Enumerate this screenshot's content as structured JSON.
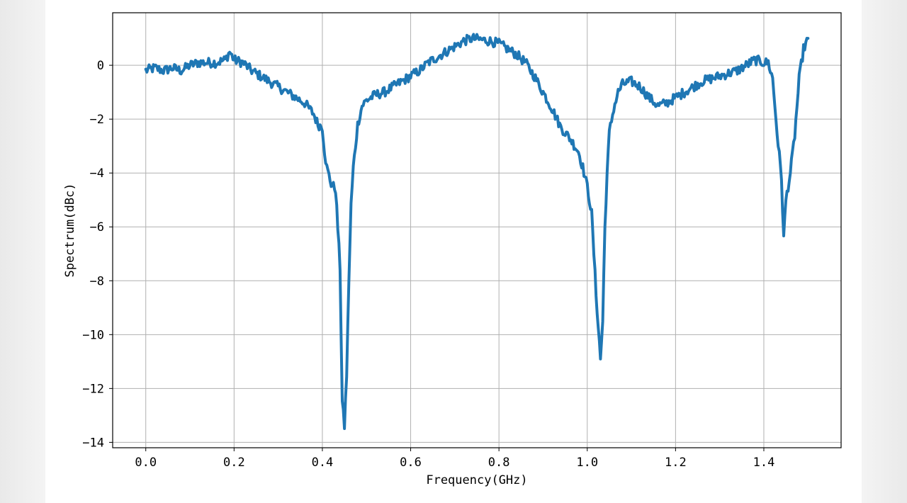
{
  "chart_data": {
    "type": "line",
    "title": "",
    "xlabel": "Frequency(GHz)",
    "ylabel": "Spectrum(dBc)",
    "xlim": [
      -0.075,
      1.575
    ],
    "ylim": [
      -14.2,
      1.95
    ],
    "grid": true,
    "x_ticks": [
      0.0,
      0.2,
      0.4,
      0.6,
      0.8,
      1.0,
      1.2,
      1.4
    ],
    "x_tick_labels": [
      "0.0",
      "0.2",
      "0.4",
      "0.6",
      "0.8",
      "1.0",
      "1.2",
      "1.4"
    ],
    "y_ticks": [
      0,
      -2,
      -4,
      -6,
      -8,
      -10,
      -12,
      -14
    ],
    "y_tick_labels": [
      "0",
      "−2",
      "−4",
      "−6",
      "−8",
      "−10",
      "−12",
      "−14"
    ],
    "series": [
      {
        "color": "#1f77b4",
        "x": [
          0.0,
          0.02,
          0.04,
          0.06,
          0.08,
          0.1,
          0.12,
          0.14,
          0.16,
          0.18,
          0.19,
          0.2,
          0.22,
          0.24,
          0.26,
          0.28,
          0.3,
          0.32,
          0.34,
          0.36,
          0.38,
          0.39,
          0.4,
          0.405,
          0.41,
          0.42,
          0.43,
          0.44,
          0.445,
          0.45,
          0.455,
          0.46,
          0.465,
          0.47,
          0.48,
          0.49,
          0.5,
          0.52,
          0.54,
          0.56,
          0.58,
          0.6,
          0.62,
          0.64,
          0.66,
          0.68,
          0.7,
          0.72,
          0.74,
          0.76,
          0.78,
          0.8,
          0.82,
          0.84,
          0.86,
          0.88,
          0.9,
          0.92,
          0.94,
          0.96,
          0.98,
          0.99,
          1.0,
          1.01,
          1.02,
          1.03,
          1.035,
          1.04,
          1.045,
          1.05,
          1.06,
          1.07,
          1.08,
          1.1,
          1.12,
          1.14,
          1.16,
          1.18,
          1.2,
          1.22,
          1.24,
          1.26,
          1.28,
          1.3,
          1.32,
          1.34,
          1.36,
          1.38,
          1.4,
          1.41,
          1.42,
          1.43,
          1.44,
          1.445,
          1.45,
          1.46,
          1.47,
          1.48,
          1.49,
          1.5
        ],
        "y": [
          -0.2,
          -0.1,
          -0.2,
          -0.1,
          -0.2,
          0.0,
          0.1,
          0.1,
          0.1,
          0.2,
          0.5,
          0.2,
          0.1,
          -0.2,
          -0.4,
          -0.6,
          -0.8,
          -1.0,
          -1.2,
          -1.4,
          -1.8,
          -2.2,
          -2.3,
          -3.2,
          -3.8,
          -4.4,
          -4.6,
          -7.5,
          -12.5,
          -13.4,
          -11.5,
          -8.0,
          -5.2,
          -3.8,
          -2.2,
          -1.5,
          -1.3,
          -1.1,
          -1.0,
          -0.8,
          -0.6,
          -0.4,
          -0.2,
          0.1,
          0.3,
          0.5,
          0.7,
          0.9,
          1.0,
          0.95,
          0.9,
          0.8,
          0.6,
          0.4,
          0.1,
          -0.4,
          -1.0,
          -1.6,
          -2.3,
          -2.7,
          -3.2,
          -3.8,
          -4.5,
          -5.5,
          -8.5,
          -10.9,
          -9.5,
          -6.0,
          -4.0,
          -2.5,
          -1.6,
          -1.0,
          -0.7,
          -0.6,
          -0.8,
          -1.2,
          -1.5,
          -1.4,
          -1.2,
          -1.0,
          -0.8,
          -0.6,
          -0.5,
          -0.4,
          -0.3,
          -0.2,
          0.0,
          0.2,
          0.1,
          0.1,
          -0.5,
          -2.5,
          -4.2,
          -6.4,
          -5.0,
          -4.0,
          -2.6,
          -0.5,
          0.6,
          1.0
        ]
      }
    ]
  }
}
